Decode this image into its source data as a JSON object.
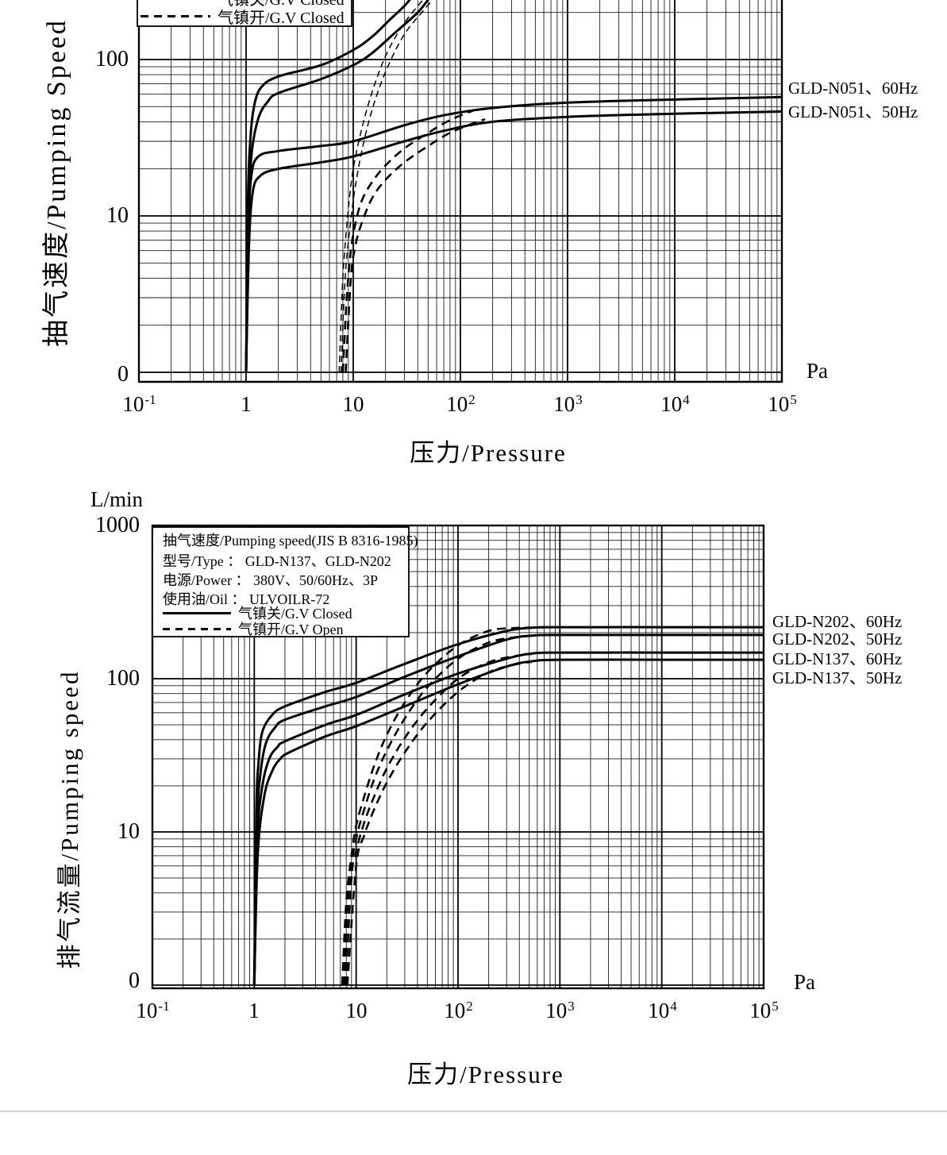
{
  "ui": {
    "top": {
      "y_title": "抽气速度/Pumping Speed",
      "x_title": "压力/Pressure",
      "pa": "Pa",
      "y_ticks": [
        "100",
        "10",
        "0"
      ],
      "x_ticks": [
        {
          "b": "10",
          "s": "-1"
        },
        {
          "b": "1",
          "s": ""
        },
        {
          "b": "10",
          "s": ""
        },
        {
          "b": "10",
          "s": "2"
        },
        {
          "b": "10",
          "s": "3"
        },
        {
          "b": "10",
          "s": "4"
        },
        {
          "b": "10",
          "s": "5"
        }
      ],
      "curve_labels": [
        "GLD-N051、60Hz",
        "GLD-N051、50Hz"
      ],
      "legend": {
        "rows": [
          {
            "style": "solid",
            "label": "气镇关/G.V Closed"
          },
          {
            "style": "dashed",
            "label": "气镇开/G.V Closed"
          }
        ]
      }
    },
    "bottom": {
      "unit": "L/min",
      "y_title": "排气流量/Pumping speed",
      "x_title": "压力/Pressure",
      "pa": "Pa",
      "y_ticks": [
        "1000",
        "100",
        "10",
        "0"
      ],
      "x_ticks": [
        {
          "b": "10",
          "s": "-1"
        },
        {
          "b": "1",
          "s": ""
        },
        {
          "b": "10",
          "s": ""
        },
        {
          "b": "10",
          "s": "2"
        },
        {
          "b": "10",
          "s": "3"
        },
        {
          "b": "10",
          "s": "4"
        },
        {
          "b": "10",
          "s": "5"
        }
      ],
      "curve_labels": [
        "GLD-N202、60Hz",
        "GLD-N202、50Hz",
        "GLD-N137、60Hz",
        "GLD-N137、50Hz"
      ],
      "legend": {
        "title": "抽气速度/Pumping speed(JIS B 8316-1985)",
        "info": [
          "型号/Type ： GLD-N137、GLD-N202",
          "电源/Power ： 380V、50/60Hz、3P",
          "使用油/Oil ： ULVOILR-72"
        ],
        "line_rows": [
          {
            "style": "solid",
            "label": "气镇关/G.V Closed"
          },
          {
            "style": "dashed",
            "label": "气镇开/G.V Open"
          }
        ]
      }
    }
  },
  "chart_data": [
    {
      "type": "line",
      "title": "",
      "xlabel": "压力/Pressure",
      "x_unit": "Pa",
      "ylabel": "抽气速度/Pumping Speed",
      "x_scale": "log",
      "y_scale": "log",
      "x_range": [
        0.1,
        100000
      ],
      "y_visible_range": [
        1,
        240
      ],
      "x_tick_labels": [
        "10⁻¹",
        "1",
        "10",
        "10²",
        "10³",
        "10⁴",
        "10⁵"
      ],
      "y_tick_labels": [
        "100",
        "10",
        "0"
      ],
      "grid": "log-minor-on",
      "legend_position": "top-left (partially cut off)",
      "curve_labels_right": [
        "GLD-N051、60Hz",
        "GLD-N051、50Hz"
      ],
      "series": [
        {
          "name": "upper model (label cut off), 60Hz, G.V Closed",
          "line": "solid",
          "points": [
            [
              1,
              1
            ],
            [
              1.04,
              12
            ],
            [
              1.1,
              32
            ],
            [
              1.2,
              52
            ],
            [
              1.4,
              67
            ],
            [
              2,
              78
            ],
            [
              5,
              92
            ],
            [
              10,
              115
            ],
            [
              15,
              140
            ],
            [
              22,
              180
            ],
            [
              30,
              220
            ],
            [
              36,
              255
            ]
          ]
        },
        {
          "name": "upper model (label cut off), 50Hz, G.V Closed",
          "line": "solid",
          "points": [
            [
              1,
              1
            ],
            [
              1.05,
              9
            ],
            [
              1.12,
              24
            ],
            [
              1.3,
              42
            ],
            [
              1.6,
              54
            ],
            [
              2,
              61
            ],
            [
              5,
              75
            ],
            [
              10,
              92
            ],
            [
              15,
              110
            ],
            [
              25,
              150
            ],
            [
              40,
              200
            ],
            [
              52,
              250
            ]
          ]
        },
        {
          "name": "GLD-N051, 60Hz, G.V Closed",
          "line": "solid",
          "points": [
            [
              1,
              1
            ],
            [
              1.05,
              8
            ],
            [
              1.12,
              18
            ],
            [
              1.3,
              24
            ],
            [
              2,
              26
            ],
            [
              5,
              28
            ],
            [
              10,
              30
            ],
            [
              30,
              38
            ],
            [
              70,
              44
            ],
            [
              200,
              49
            ],
            [
              1000,
              53
            ],
            [
              10000,
              55.5
            ],
            [
              100000,
              57.5
            ]
          ]
        },
        {
          "name": "GLD-N051, 50Hz, G.V Closed",
          "line": "solid",
          "points": [
            [
              1,
              1
            ],
            [
              1.06,
              6
            ],
            [
              1.15,
              14
            ],
            [
              1.35,
              18
            ],
            [
              2,
              20
            ],
            [
              5,
              22
            ],
            [
              10,
              24
            ],
            [
              30,
              30
            ],
            [
              70,
              35
            ],
            [
              200,
              40
            ],
            [
              1000,
              43
            ],
            [
              10000,
              45
            ],
            [
              100000,
              46.5
            ]
          ]
        },
        {
          "name": "upper model (label cut off), 60Hz, G.V Open",
          "line": "dashed-thin",
          "points": [
            [
              7.4,
              1
            ],
            [
              8,
              4
            ],
            [
              9,
              11
            ],
            [
              10,
              20
            ],
            [
              12,
              36
            ],
            [
              15,
              62
            ],
            [
              20,
              105
            ],
            [
              28,
              160
            ],
            [
              40,
              220
            ],
            [
              50,
              260
            ]
          ]
        },
        {
          "name": "upper model (label cut off), 50Hz, G.V Open",
          "line": "dashed-thin",
          "points": [
            [
              7.7,
              1
            ],
            [
              8.4,
              4
            ],
            [
              9.6,
              10
            ],
            [
              11,
              19
            ],
            [
              13,
              33
            ],
            [
              16,
              55
            ],
            [
              21,
              90
            ],
            [
              30,
              145
            ],
            [
              45,
              205
            ],
            [
              58,
              250
            ]
          ]
        },
        {
          "name": "GLD-N051, 60Hz, G.V Open",
          "line": "dashed",
          "points": [
            [
              8,
              1
            ],
            [
              8.7,
              3
            ],
            [
              9.5,
              6
            ],
            [
              10.5,
              9
            ],
            [
              12,
              12.5
            ],
            [
              15,
              16.5
            ],
            [
              20,
              21
            ],
            [
              30,
              27
            ],
            [
              50,
              34
            ],
            [
              80,
              41
            ],
            [
              130,
              47
            ]
          ]
        },
        {
          "name": "GLD-N051, 50Hz, G.V Open",
          "line": "dashed",
          "points": [
            [
              8.5,
              1
            ],
            [
              9.5,
              4
            ],
            [
              10.5,
              6.5
            ],
            [
              12,
              9
            ],
            [
              15,
              13
            ],
            [
              20,
              17
            ],
            [
              30,
              22
            ],
            [
              50,
              28
            ],
            [
              80,
              34
            ],
            [
              130,
              39
            ],
            [
              170,
              41.5
            ]
          ]
        }
      ]
    },
    {
      "type": "line",
      "title": "抽气速度/Pumping speed(JIS B 8316-1985)",
      "xlabel": "压力/Pressure",
      "x_unit": "Pa",
      "ylabel": "排气流量/Pumping speed",
      "y_unit": "L/min",
      "x_scale": "log",
      "y_scale": "log",
      "x_range": [
        0.1,
        100000
      ],
      "y_range": [
        1,
        1000
      ],
      "x_tick_labels": [
        "10⁻¹",
        "1",
        "10",
        "10²",
        "10³",
        "10⁴",
        "10⁵"
      ],
      "y_tick_labels": [
        "1000",
        "100",
        "10",
        "0"
      ],
      "grid": "log-minor-on",
      "legend_position": "top-left",
      "curve_labels_right": [
        "GLD-N202、60Hz",
        "GLD-N202、50Hz",
        "GLD-N137、60Hz",
        "GLD-N137、50Hz"
      ],
      "series": [
        {
          "name": "GLD-N202, 60Hz, G.V Closed",
          "line": "solid",
          "points": [
            [
              1,
              1
            ],
            [
              1.05,
              14
            ],
            [
              1.1,
              28
            ],
            [
              1.2,
              45
            ],
            [
              1.5,
              58
            ],
            [
              2,
              66
            ],
            [
              5,
              82
            ],
            [
              10,
              94
            ],
            [
              30,
              125
            ],
            [
              100,
              168
            ],
            [
              300,
              205
            ],
            [
              530,
              215
            ],
            [
              1000,
              217
            ],
            [
              10000,
              217
            ],
            [
              100000,
              217
            ]
          ]
        },
        {
          "name": "GLD-N202, 50Hz, G.V Closed",
          "line": "solid",
          "points": [
            [
              1,
              1
            ],
            [
              1.06,
              11
            ],
            [
              1.15,
              24
            ],
            [
              1.3,
              38
            ],
            [
              1.6,
              48
            ],
            [
              2,
              54
            ],
            [
              5,
              66
            ],
            [
              10,
              76
            ],
            [
              30,
              103
            ],
            [
              100,
              140
            ],
            [
              300,
              180
            ],
            [
              530,
              191
            ],
            [
              1000,
              193
            ],
            [
              10000,
              193
            ],
            [
              100000,
              193
            ]
          ]
        },
        {
          "name": "GLD-N137, 60Hz, G.V Closed",
          "line": "solid",
          "points": [
            [
              1,
              1
            ],
            [
              1.07,
              9
            ],
            [
              1.2,
              20
            ],
            [
              1.4,
              30
            ],
            [
              1.7,
              36
            ],
            [
              2,
              39
            ],
            [
              5,
              50
            ],
            [
              10,
              58
            ],
            [
              30,
              79
            ],
            [
              100,
              108
            ],
            [
              300,
              135
            ],
            [
              530,
              146
            ],
            [
              1000,
              148
            ],
            [
              10000,
              148
            ],
            [
              100000,
              148
            ]
          ]
        },
        {
          "name": "GLD-N137, 50Hz, G.V Closed",
          "line": "solid",
          "points": [
            [
              1,
              1
            ],
            [
              1.08,
              7
            ],
            [
              1.25,
              17
            ],
            [
              1.5,
              25
            ],
            [
              1.8,
              30
            ],
            [
              2.2,
              33
            ],
            [
              5,
              42
            ],
            [
              10,
              49
            ],
            [
              30,
              66
            ],
            [
              100,
              92
            ],
            [
              300,
              120
            ],
            [
              530,
              130
            ],
            [
              1000,
              133
            ],
            [
              10000,
              133
            ],
            [
              100000,
              133
            ]
          ]
        },
        {
          "name": "GLD-N202, 60Hz, G.V Open",
          "line": "dashed",
          "points": [
            [
              7.3,
              1
            ],
            [
              8,
              3.5
            ],
            [
              9,
              7
            ],
            [
              10,
              11
            ],
            [
              12,
              17
            ],
            [
              15,
              27
            ],
            [
              20,
              43
            ],
            [
              30,
              70
            ],
            [
              50,
              110
            ],
            [
              100,
              165
            ],
            [
              200,
              205
            ],
            [
              350,
              214
            ],
            [
              530,
              216
            ]
          ]
        },
        {
          "name": "GLD-N202, 50Hz, G.V Open",
          "line": "dashed",
          "points": [
            [
              7.6,
              1
            ],
            [
              8.5,
              4.5
            ],
            [
              10,
              9
            ],
            [
              12,
              14
            ],
            [
              15,
              22
            ],
            [
              20,
              34
            ],
            [
              30,
              55
            ],
            [
              50,
              88
            ],
            [
              100,
              135
            ],
            [
              200,
              172
            ],
            [
              350,
              186
            ],
            [
              530,
              191
            ]
          ]
        },
        {
          "name": "GLD-N137, 60Hz, G.V Open",
          "line": "dashed",
          "points": [
            [
              7.9,
              1
            ],
            [
              9,
              5
            ],
            [
              10,
              7.5
            ],
            [
              12,
              11.5
            ],
            [
              15,
              17
            ],
            [
              20,
              26
            ],
            [
              30,
              41
            ],
            [
              50,
              64
            ],
            [
              100,
              100
            ],
            [
              200,
              128
            ],
            [
              350,
              140
            ],
            [
              530,
              145
            ]
          ]
        },
        {
          "name": "GLD-N137, 50Hz, G.V Open",
          "line": "dashed",
          "points": [
            [
              8.2,
              1
            ],
            [
              10,
              6
            ],
            [
              12,
              9.5
            ],
            [
              15,
              14
            ],
            [
              20,
              21
            ],
            [
              30,
              33
            ],
            [
              50,
              52
            ],
            [
              100,
              82
            ],
            [
              200,
              110
            ],
            [
              350,
              123
            ],
            [
              530,
              129
            ]
          ]
        }
      ]
    }
  ]
}
